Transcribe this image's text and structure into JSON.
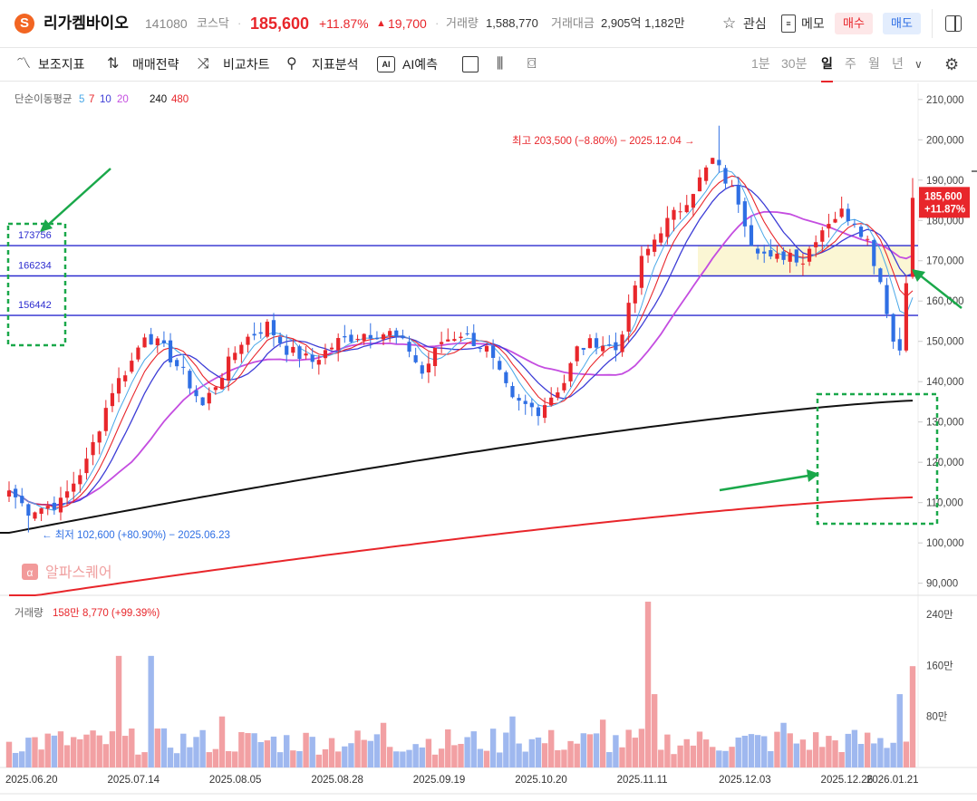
{
  "header": {
    "logo_glyph": "S",
    "stock_name": "리가켐바이오",
    "code": "141080",
    "market": "코스닥",
    "separator": "·",
    "price": "185,600",
    "change_pct": "+11.87%",
    "change_arrow": "▲",
    "change_amt": "19,700",
    "volume_label": "거래량",
    "volume_value": "1,588,770",
    "amount_label": "거래대금",
    "amount_value": "2,905억 1,182만",
    "fav_label": "관심",
    "memo_label": "메모",
    "buy_label": "매수",
    "sell_label": "매도",
    "colors": {
      "up": "#e8262b",
      "down": "#2f6fe4"
    }
  },
  "toolbar": {
    "tools": [
      {
        "label": "보조지표",
        "icon": "indicator-icon"
      },
      {
        "label": "매매전략",
        "icon": "strategy-icon"
      },
      {
        "label": "비교차트",
        "icon": "compare-icon"
      },
      {
        "label": "지표분석",
        "icon": "analysis-icon"
      },
      {
        "label": "AI예측",
        "icon": "ai-icon"
      }
    ],
    "ai_icon_text": "AI",
    "periods": [
      "1분",
      "30분",
      "일",
      "주",
      "월",
      "년"
    ],
    "selected_period": "일"
  },
  "chart_data": {
    "type": "candlestick",
    "ma_legend": {
      "label": "단순이동평균",
      "periods": [
        "5",
        "7",
        "10",
        "20",
        "240",
        "480"
      ],
      "colors": [
        "#4aa8e8",
        "#e8262b",
        "#3d3dd6",
        "#c44de0",
        "#111111",
        "#e8262b"
      ]
    },
    "x_labels": [
      "2025.06.20",
      "2025.07.14",
      "2025.08.05",
      "2025.08.28",
      "2025.09.19",
      "2025.10.20",
      "2025.11.11",
      "2025.12.03",
      "2025.12.26",
      "2026.01.21"
    ],
    "price_axis": {
      "ticks": [
        "210,000",
        "200,000",
        "190,000",
        "180,000",
        "170,000",
        "160,000",
        "150,000",
        "140,000",
        "130,000",
        "120,000",
        "110,000",
        "100,000",
        "90,000"
      ],
      "ylim": [
        87000,
        214000
      ]
    },
    "volume_axis": {
      "ticks": [
        "240만",
        "160만",
        "80만"
      ],
      "ylim": [
        0,
        2700000
      ]
    },
    "volume_legend": {
      "label": "거래량",
      "value": "158만 8,770 (+99.39%)"
    },
    "high_annotation": "최고 203,500 (−8.80%) − 2025.12.04 →",
    "low_annotation": "← 최저 102,600 (+80.90%) − 2025.06.23",
    "h_lines": [
      {
        "label": "173756",
        "value": 173756
      },
      {
        "label": "166234",
        "value": 166234
      },
      {
        "label": "156442",
        "value": 156442
      }
    ],
    "current_price": {
      "price": "185,600",
      "change": "+11.87%"
    },
    "watermark": "알파스퀘어",
    "anchors": [
      [
        0,
        113000
      ],
      [
        3,
        108000
      ],
      [
        8,
        110000
      ],
      [
        12,
        120000
      ],
      [
        16,
        138000
      ],
      [
        19,
        145000
      ],
      [
        21,
        152000
      ],
      [
        24,
        148000
      ],
      [
        27,
        142000
      ],
      [
        30,
        134000
      ],
      [
        33,
        142000
      ],
      [
        36,
        150000
      ],
      [
        40,
        154000
      ],
      [
        43,
        148000
      ],
      [
        47,
        145000
      ],
      [
        51,
        150000
      ],
      [
        55,
        152000
      ],
      [
        59,
        152000
      ],
      [
        62,
        148000
      ],
      [
        64,
        142000
      ],
      [
        67,
        150000
      ],
      [
        70,
        152000
      ],
      [
        74,
        148000
      ],
      [
        78,
        135000
      ],
      [
        82,
        133000
      ],
      [
        86,
        140000
      ],
      [
        88,
        148000
      ],
      [
        91,
        150000
      ],
      [
        94,
        148000
      ],
      [
        96,
        158000
      ],
      [
        98,
        170000
      ],
      [
        101,
        178000
      ],
      [
        104,
        183000
      ],
      [
        107,
        190000
      ],
      [
        109,
        195000
      ],
      [
        111,
        190000
      ],
      [
        113,
        185000
      ],
      [
        115,
        175000
      ],
      [
        118,
        170000
      ],
      [
        121,
        172000
      ],
      [
        123,
        170000
      ],
      [
        125,
        176000
      ],
      [
        127,
        180000
      ],
      [
        129,
        182000
      ],
      [
        131,
        180000
      ],
      [
        133,
        175000
      ],
      [
        135,
        165000
      ],
      [
        136,
        158000
      ],
      [
        137,
        150000
      ],
      [
        138,
        148000
      ],
      [
        139,
        166000
      ],
      [
        140,
        185600
      ]
    ],
    "extremes": {
      "high_index": 110,
      "high": 203500,
      "low_index": 3,
      "low": 102600
    },
    "ma240": {
      "start": 102500,
      "end": 135300
    },
    "ma480": {
      "start": 86000,
      "end": 111300
    },
    "volume_spikes": [
      [
        17,
        1750000
      ],
      [
        22,
        1750000
      ],
      [
        33,
        800000
      ],
      [
        58,
        700000
      ],
      [
        78,
        800000
      ],
      [
        92,
        750000
      ],
      [
        99,
        2600000
      ],
      [
        100,
        1150000
      ],
      [
        120,
        700000
      ],
      [
        138,
        1150000
      ],
      [
        140,
        1588770
      ]
    ],
    "annotations": [
      {
        "type": "arrow",
        "color": "#1aa84a"
      },
      {
        "type": "dashed-box",
        "color": "#1aa84a"
      },
      {
        "type": "arrow",
        "color": "#1aa84a"
      },
      {
        "type": "dashed-box",
        "color": "#1aa84a"
      },
      {
        "type": "arrow",
        "color": "#1aa84a"
      }
    ]
  }
}
